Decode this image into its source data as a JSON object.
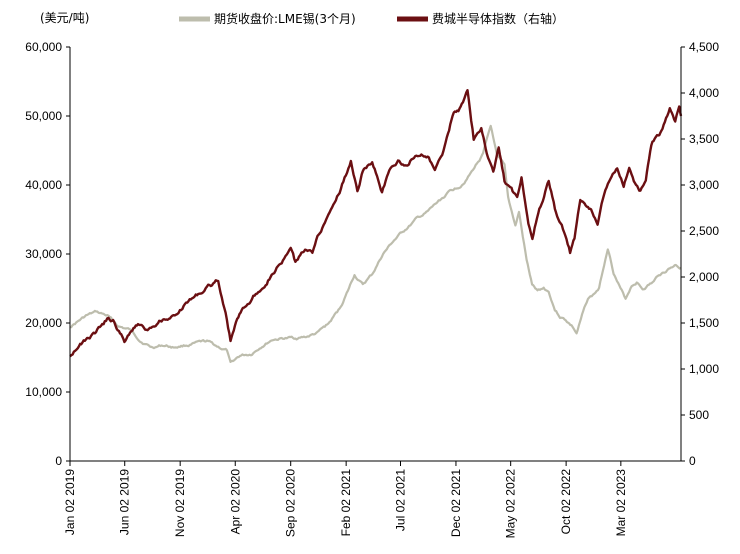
{
  "chart_data": {
    "type": "line",
    "title": "",
    "left_axis": {
      "unit_label": "(美元/吨)",
      "ylim": [
        0,
        60000
      ],
      "ticks": [
        "0",
        "10,000",
        "20,000",
        "30,000",
        "40,000",
        "50,000",
        "60,000"
      ]
    },
    "right_axis": {
      "ylim": [
        0,
        4500
      ],
      "ticks": [
        "0",
        "500",
        "1,000",
        "1,500",
        "2,000",
        "2,500",
        "3,000",
        "3,500",
        "4,000",
        "4,500"
      ]
    },
    "x_axis": {
      "start": "2019-01-02",
      "end": "2023-08-15",
      "ticks": [
        "Jan 02 2019",
        "Jun 02 2019",
        "Nov 02 2019",
        "Apr 02 2020",
        "Sep 02 2020",
        "Feb 02 2021",
        "Jul 02 2021",
        "Dec 02 2021",
        "May 02 2022",
        "Oct 02 2022",
        "Mar 02 2023"
      ]
    },
    "series": [
      {
        "name": "期货收盘价:LME锡(3个月)",
        "axis": "left",
        "color": "#bdbdad",
        "points": [
          [
            "2019-01-02",
            19500
          ],
          [
            "2019-02-15",
            21000
          ],
          [
            "2019-03-15",
            21500
          ],
          [
            "2019-04-15",
            21000
          ],
          [
            "2019-05-15",
            19500
          ],
          [
            "2019-06-15",
            19000
          ],
          [
            "2019-07-15",
            17500
          ],
          [
            "2019-08-15",
            16500
          ],
          [
            "2019-09-15",
            16800
          ],
          [
            "2019-10-15",
            16500
          ],
          [
            "2019-11-15",
            16800
          ],
          [
            "2019-12-15",
            17000
          ],
          [
            "2020-01-15",
            17200
          ],
          [
            "2020-02-15",
            16500
          ],
          [
            "2020-03-10",
            16000
          ],
          [
            "2020-03-20",
            14000
          ],
          [
            "2020-04-15",
            15200
          ],
          [
            "2020-05-15",
            15500
          ],
          [
            "2020-06-15",
            16800
          ],
          [
            "2020-07-15",
            17700
          ],
          [
            "2020-08-15",
            17800
          ],
          [
            "2020-09-15",
            17800
          ],
          [
            "2020-10-15",
            18000
          ],
          [
            "2020-11-15",
            18500
          ],
          [
            "2020-12-15",
            19800
          ],
          [
            "2021-01-15",
            22000
          ],
          [
            "2021-02-10",
            25000
          ],
          [
            "2021-02-25",
            27000
          ],
          [
            "2021-03-20",
            25500
          ],
          [
            "2021-04-15",
            27000
          ],
          [
            "2021-05-15",
            30000
          ],
          [
            "2021-06-15",
            32000
          ],
          [
            "2021-07-15",
            33500
          ],
          [
            "2021-08-15",
            35000
          ],
          [
            "2021-09-15",
            36000
          ],
          [
            "2021-10-15",
            37500
          ],
          [
            "2021-11-15",
            39000
          ],
          [
            "2021-12-15",
            40000
          ],
          [
            "2022-01-15",
            42000
          ],
          [
            "2022-02-15",
            44500
          ],
          [
            "2022-03-08",
            48500
          ],
          [
            "2022-03-25",
            44000
          ],
          [
            "2022-04-15",
            42500
          ],
          [
            "2022-04-25",
            38000
          ],
          [
            "2022-05-15",
            34000
          ],
          [
            "2022-05-25",
            36000
          ],
          [
            "2022-06-15",
            29000
          ],
          [
            "2022-06-30",
            25500
          ],
          [
            "2022-07-15",
            24500
          ],
          [
            "2022-08-01",
            25000
          ],
          [
            "2022-08-15",
            24500
          ],
          [
            "2022-09-01",
            22000
          ],
          [
            "2022-09-15",
            21000
          ],
          [
            "2022-10-01",
            20500
          ],
          [
            "2022-10-20",
            19500
          ],
          [
            "2022-10-31",
            18500
          ],
          [
            "2022-11-15",
            21000
          ],
          [
            "2022-12-01",
            23500
          ],
          [
            "2022-12-15",
            24000
          ],
          [
            "2023-01-01",
            25000
          ],
          [
            "2023-01-15",
            28500
          ],
          [
            "2023-01-25",
            31000
          ],
          [
            "2023-02-10",
            27500
          ],
          [
            "2023-03-01",
            25000
          ],
          [
            "2023-03-15",
            23500
          ],
          [
            "2023-04-01",
            25500
          ],
          [
            "2023-04-15",
            26000
          ],
          [
            "2023-05-01",
            25000
          ],
          [
            "2023-05-15",
            25500
          ],
          [
            "2023-06-01",
            26000
          ],
          [
            "2023-06-15",
            27000
          ],
          [
            "2023-07-01",
            27500
          ],
          [
            "2023-07-15",
            28000
          ],
          [
            "2023-08-01",
            28500
          ],
          [
            "2023-08-15",
            28000
          ]
        ]
      },
      {
        "name": "费城半导体指数（右轴）",
        "axis": "right",
        "color": "#6b0f12",
        "points": [
          [
            "2019-01-02",
            1150
          ],
          [
            "2019-01-20",
            1250
          ],
          [
            "2019-02-15",
            1320
          ],
          [
            "2019-03-15",
            1400
          ],
          [
            "2019-04-15",
            1540
          ],
          [
            "2019-05-01",
            1520
          ],
          [
            "2019-05-20",
            1380
          ],
          [
            "2019-06-01",
            1300
          ],
          [
            "2019-06-20",
            1430
          ],
          [
            "2019-07-15",
            1500
          ],
          [
            "2019-08-01",
            1440
          ],
          [
            "2019-08-20",
            1500
          ],
          [
            "2019-09-15",
            1560
          ],
          [
            "2019-10-15",
            1580
          ],
          [
            "2019-11-15",
            1700
          ],
          [
            "2019-12-15",
            1800
          ],
          [
            "2020-01-15",
            1880
          ],
          [
            "2020-02-15",
            1950
          ],
          [
            "2020-02-25",
            1800
          ],
          [
            "2020-03-10",
            1550
          ],
          [
            "2020-03-20",
            1320
          ],
          [
            "2020-04-01",
            1480
          ],
          [
            "2020-04-20",
            1650
          ],
          [
            "2020-05-15",
            1750
          ],
          [
            "2020-06-15",
            1900
          ],
          [
            "2020-07-15",
            2070
          ],
          [
            "2020-08-15",
            2200
          ],
          [
            "2020-09-02",
            2300
          ],
          [
            "2020-09-15",
            2150
          ],
          [
            "2020-10-15",
            2300
          ],
          [
            "2020-11-01",
            2250
          ],
          [
            "2020-11-15",
            2450
          ],
          [
            "2020-12-15",
            2700
          ],
          [
            "2021-01-15",
            2950
          ],
          [
            "2021-02-15",
            3250
          ],
          [
            "2021-03-05",
            2950
          ],
          [
            "2021-03-20",
            3150
          ],
          [
            "2021-04-15",
            3250
          ],
          [
            "2021-05-12",
            2950
          ],
          [
            "2021-06-01",
            3150
          ],
          [
            "2021-06-25",
            3250
          ],
          [
            "2021-07-15",
            3200
          ],
          [
            "2021-08-15",
            3350
          ],
          [
            "2021-09-15",
            3300
          ],
          [
            "2021-10-05",
            3150
          ],
          [
            "2021-10-25",
            3300
          ],
          [
            "2021-11-10",
            3550
          ],
          [
            "2021-11-26",
            3800
          ],
          [
            "2021-12-15",
            3850
          ],
          [
            "2022-01-03",
            4000
          ],
          [
            "2022-01-20",
            3500
          ],
          [
            "2022-02-10",
            3600
          ],
          [
            "2022-02-25",
            3350
          ],
          [
            "2022-03-15",
            3150
          ],
          [
            "2022-03-30",
            3400
          ],
          [
            "2022-04-15",
            3050
          ],
          [
            "2022-05-01",
            2950
          ],
          [
            "2022-05-20",
            2850
          ],
          [
            "2022-06-01",
            3100
          ],
          [
            "2022-06-20",
            2600
          ],
          [
            "2022-07-01",
            2450
          ],
          [
            "2022-07-20",
            2750
          ],
          [
            "2022-08-15",
            3050
          ],
          [
            "2022-09-01",
            2750
          ],
          [
            "2022-09-20",
            2550
          ],
          [
            "2022-10-13",
            2250
          ],
          [
            "2022-10-25",
            2400
          ],
          [
            "2022-11-10",
            2800
          ],
          [
            "2022-11-25",
            2750
          ],
          [
            "2022-12-10",
            2700
          ],
          [
            "2022-12-28",
            2550
          ],
          [
            "2023-01-15",
            2900
          ],
          [
            "2023-02-01",
            3050
          ],
          [
            "2023-02-20",
            3150
          ],
          [
            "2023-03-10",
            3000
          ],
          [
            "2023-03-25",
            3200
          ],
          [
            "2023-04-10",
            3050
          ],
          [
            "2023-04-25",
            2950
          ],
          [
            "2023-05-10",
            3050
          ],
          [
            "2023-05-25",
            3450
          ],
          [
            "2023-06-10",
            3550
          ],
          [
            "2023-06-25",
            3600
          ],
          [
            "2023-07-15",
            3800
          ],
          [
            "2023-07-30",
            3650
          ],
          [
            "2023-08-10",
            3850
          ],
          [
            "2023-08-15",
            3750
          ]
        ]
      }
    ]
  }
}
